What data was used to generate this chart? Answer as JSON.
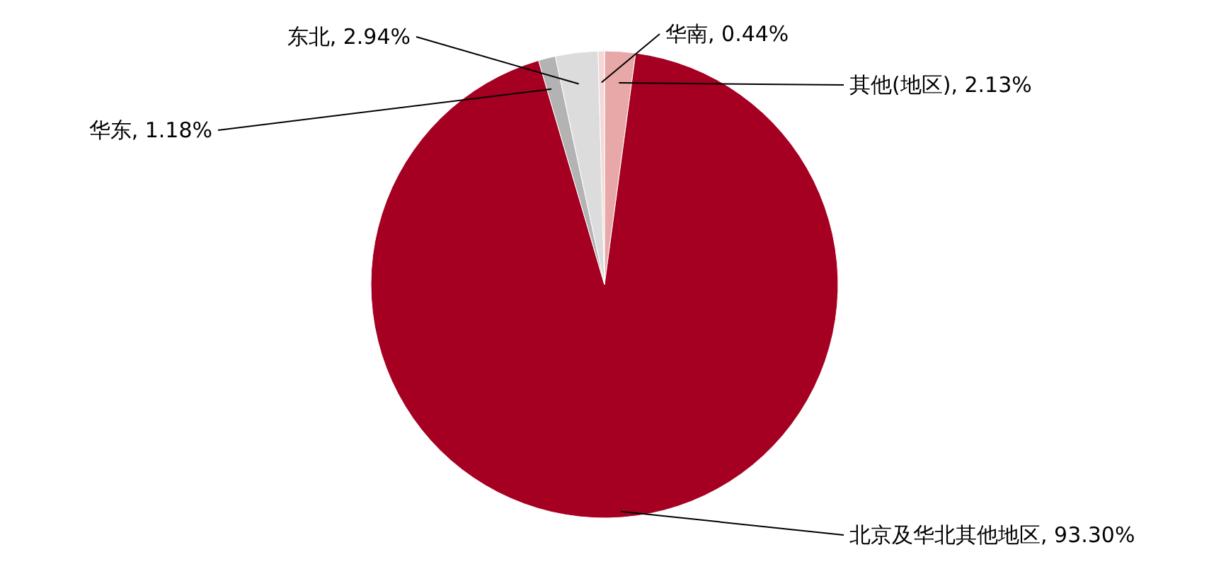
{
  "chart_data": {
    "type": "pie",
    "categories": [
      "其他(地区)",
      "北京及华北其他地区",
      "华东",
      "东北",
      "华南"
    ],
    "values": [
      2.13,
      93.3,
      1.18,
      2.94,
      0.44
    ],
    "value_labels": [
      "2.13%",
      "93.30%",
      "1.18%",
      "2.94%",
      "0.44%"
    ],
    "colors": [
      "#e8a8a8",
      "#a50021",
      "#b3b3b3",
      "#dcdcdc",
      "#f4d8d8"
    ]
  }
}
